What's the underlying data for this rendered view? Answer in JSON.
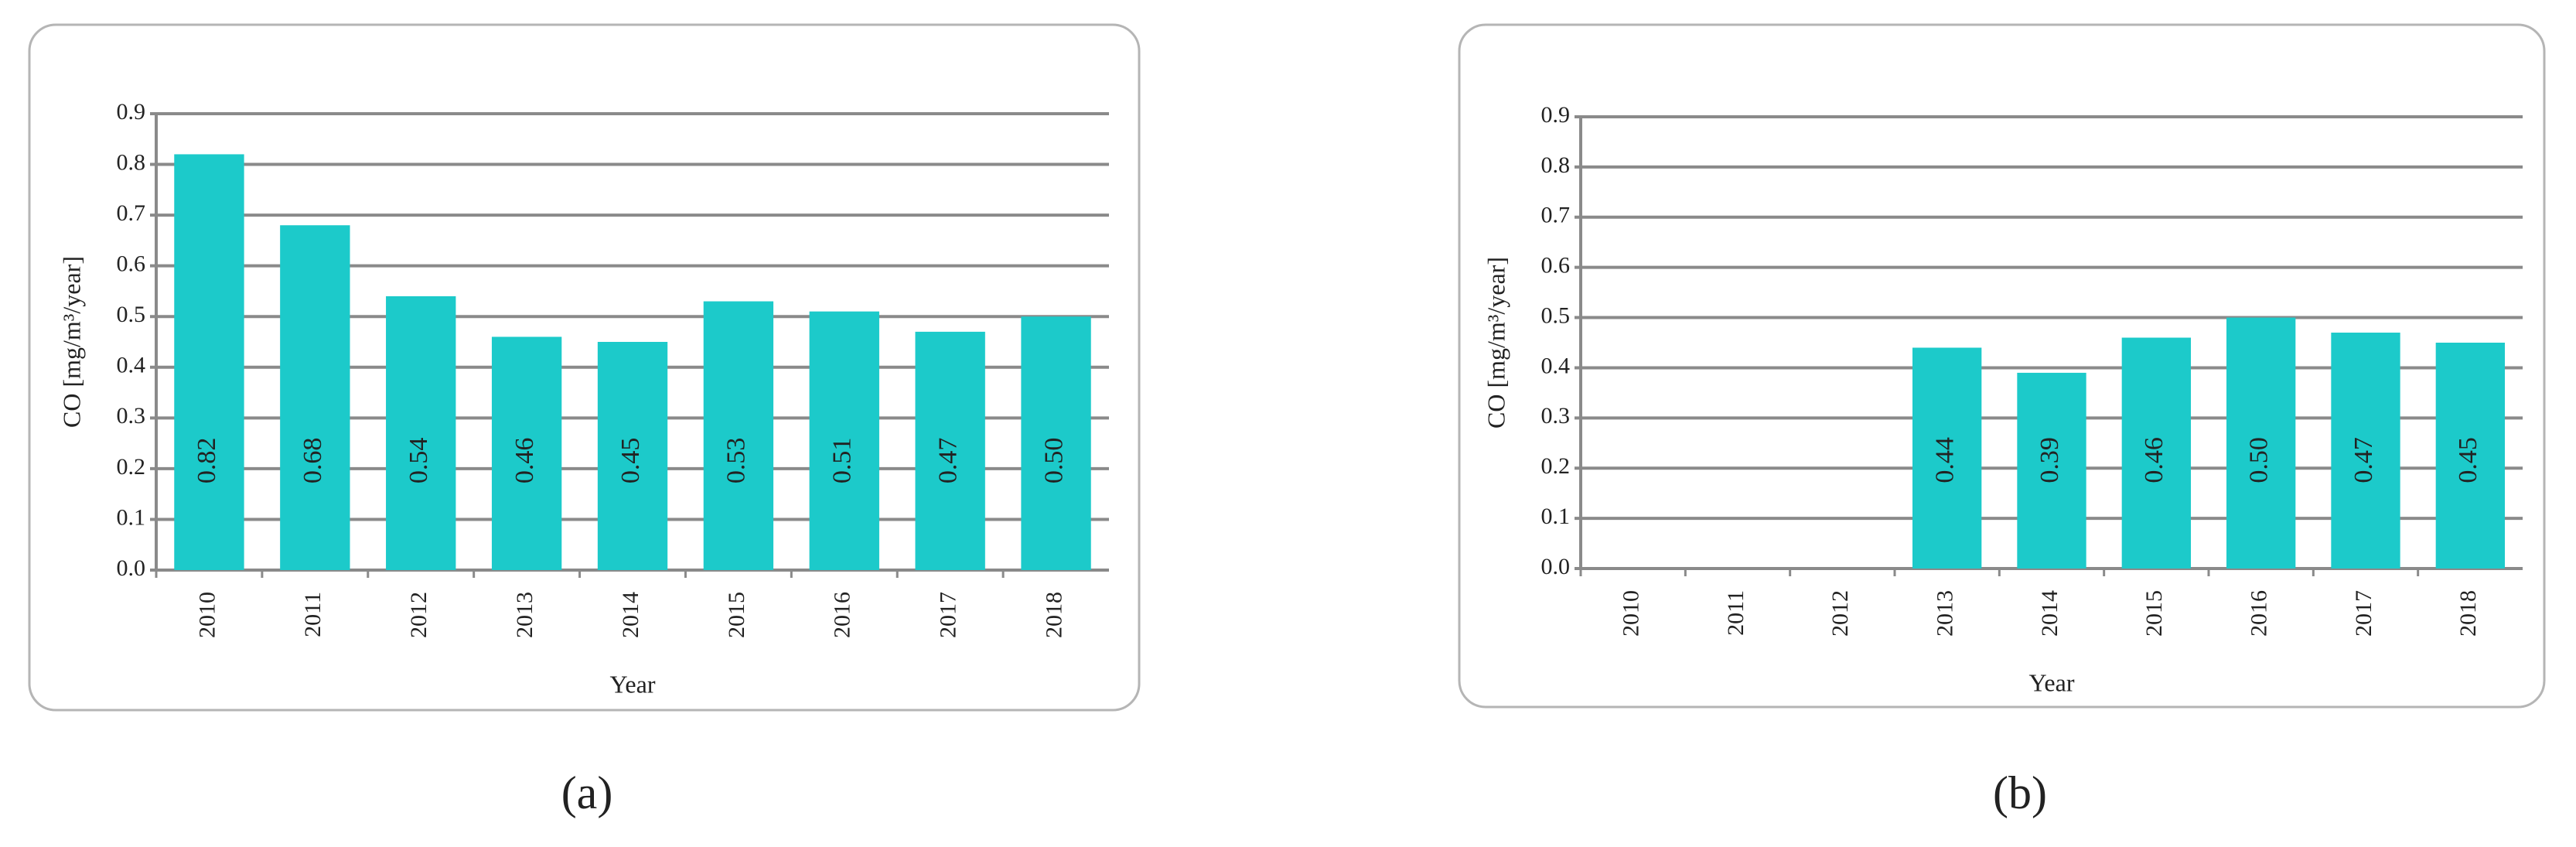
{
  "chart_data": [
    {
      "type": "bar",
      "label": "(a)",
      "x_label": "Year",
      "y_label": "CO [mg/m³/year]",
      "categories": [
        "2010",
        "2011",
        "2012",
        "2013",
        "2014",
        "2015",
        "2016",
        "2017",
        "2018"
      ],
      "values": [
        0.82,
        0.68,
        0.54,
        0.46,
        0.45,
        0.53,
        0.51,
        0.47,
        0.5
      ],
      "value_labels": [
        "0.82",
        "0.68",
        "0.54",
        "0.46",
        "0.45",
        "0.53",
        "0.51",
        "0.47",
        "0.50"
      ],
      "color": "#1ccaca",
      "ylim": [
        0,
        0.9
      ],
      "yticks": [
        {
          "value": 0,
          "label": "0.0"
        },
        0.1,
        0.2,
        0.3,
        0.4,
        0.5,
        0.6,
        0.7,
        0.8,
        0.9
      ],
      "grid": true
    },
    {
      "type": "bar",
      "label": "(b)",
      "x_label": "Year",
      "y_label": "CO [mg/m³/year]",
      "categories": [
        "2010",
        "2011",
        "2012",
        "2013",
        "2014",
        "2015",
        "2016",
        "2017",
        "2018"
      ],
      "values": [
        null,
        null,
        null,
        0.44,
        0.39,
        0.46,
        0.5,
        0.47,
        0.45
      ],
      "value_labels": [
        null,
        null,
        null,
        "0.44",
        "0.39",
        "0.46",
        "0.50",
        "0.47",
        "0.45"
      ],
      "color": "#1ccaca",
      "ylim": [
        0,
        0.9
      ],
      "yticks": [
        {
          "value": 0,
          "label": "0.0"
        },
        0.1,
        0.2,
        0.3,
        0.4,
        0.5,
        0.6,
        0.7,
        0.8,
        0.9
      ],
      "grid": true
    }
  ]
}
